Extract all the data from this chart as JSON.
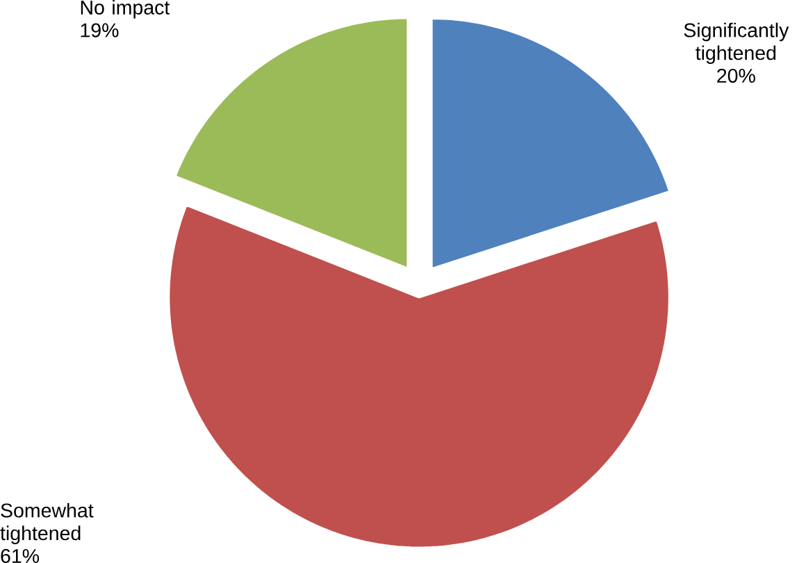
{
  "chart_data": {
    "type": "pie",
    "categories": [
      "Significantly tightened",
      "Somewhat tightened",
      "No impact"
    ],
    "values": [
      20,
      61,
      19
    ],
    "value_labels": [
      "20%",
      "61%",
      "19%"
    ],
    "colors": [
      "#4f81bd",
      "#c0504d",
      "#9bbb59"
    ]
  }
}
